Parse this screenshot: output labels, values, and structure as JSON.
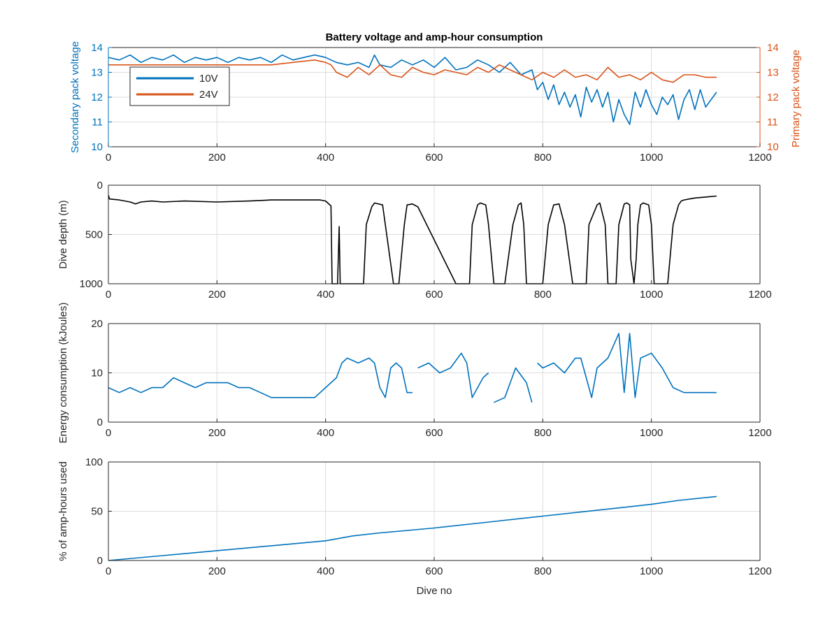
{
  "figure": {
    "title": "Battery voltage and amp-hour consumption"
  },
  "colors": {
    "blue": "#0072BD",
    "orange": "#D95319",
    "black": "#000000",
    "grid": "#dcdcdc",
    "axis": "#262626"
  },
  "chart_data": [
    {
      "type": "line",
      "title": "Battery voltage and amp-hour consumption",
      "xlabel": "",
      "ylabel": "Secondary pack voltage",
      "ylabel_right": "Primary pack voltage",
      "xlim": [
        0,
        1200
      ],
      "ylim": [
        10,
        14
      ],
      "ylim_right": [
        10,
        14
      ],
      "xticks": [
        0,
        200,
        400,
        600,
        800,
        1000,
        1200
      ],
      "yticks": [
        10,
        11,
        12,
        13,
        14
      ],
      "yticks_right": [
        10,
        11,
        12,
        13,
        14
      ],
      "grid": true,
      "legend": "top-left",
      "series": [
        {
          "name": "10V",
          "color": "#0072BD",
          "axis": "left",
          "x": [
            0,
            20,
            40,
            60,
            80,
            100,
            120,
            140,
            160,
            180,
            200,
            220,
            240,
            260,
            280,
            300,
            320,
            340,
            360,
            380,
            400,
            410,
            420,
            440,
            460,
            480,
            490,
            500,
            520,
            540,
            560,
            580,
            600,
            620,
            640,
            660,
            680,
            700,
            720,
            740,
            760,
            780,
            790,
            800,
            810,
            820,
            830,
            840,
            850,
            860,
            870,
            880,
            890,
            900,
            910,
            920,
            930,
            940,
            950,
            960,
            970,
            980,
            990,
            1000,
            1010,
            1020,
            1030,
            1040,
            1050,
            1060,
            1070,
            1080,
            1090,
            1100,
            1110,
            1120
          ],
          "values": [
            13.6,
            13.5,
            13.7,
            13.4,
            13.6,
            13.5,
            13.7,
            13.4,
            13.6,
            13.5,
            13.6,
            13.4,
            13.6,
            13.5,
            13.6,
            13.4,
            13.7,
            13.5,
            13.6,
            13.7,
            13.6,
            13.5,
            13.4,
            13.3,
            13.4,
            13.2,
            13.7,
            13.3,
            13.2,
            13.5,
            13.3,
            13.5,
            13.2,
            13.6,
            13.1,
            13.2,
            13.5,
            13.3,
            13.0,
            13.4,
            12.9,
            13.1,
            12.3,
            12.6,
            11.9,
            12.5,
            11.7,
            12.2,
            11.6,
            12.1,
            11.2,
            12.4,
            11.8,
            12.3,
            11.6,
            12.2,
            11.0,
            11.9,
            11.3,
            10.9,
            12.2,
            11.6,
            12.3,
            11.7,
            11.3,
            12.0,
            11.7,
            12.1,
            11.1,
            11.9,
            12.3,
            11.5,
            12.3,
            11.6,
            11.9,
            12.2
          ]
        },
        {
          "name": "24V",
          "color": "#D95319",
          "axis": "right",
          "x": [
            0,
            100,
            200,
            300,
            380,
            400,
            410,
            420,
            440,
            460,
            480,
            500,
            520,
            540,
            560,
            580,
            600,
            620,
            640,
            660,
            680,
            700,
            720,
            740,
            760,
            780,
            800,
            820,
            840,
            860,
            880,
            900,
            920,
            940,
            960,
            980,
            1000,
            1020,
            1040,
            1060,
            1080,
            1100,
            1120
          ],
          "values": [
            13.3,
            13.3,
            13.3,
            13.3,
            13.5,
            13.4,
            13.3,
            13.0,
            12.8,
            13.2,
            12.9,
            13.3,
            12.9,
            12.8,
            13.2,
            13.0,
            12.9,
            13.1,
            13.0,
            12.9,
            13.2,
            13.0,
            13.3,
            13.1,
            12.9,
            12.7,
            13.0,
            12.8,
            13.1,
            12.8,
            12.9,
            12.7,
            13.2,
            12.8,
            12.9,
            12.7,
            13.0,
            12.7,
            12.6,
            12.9,
            12.9,
            12.8,
            12.8
          ]
        }
      ]
    },
    {
      "type": "line",
      "xlabel": "",
      "ylabel": "Dive depth (m)",
      "xlim": [
        0,
        1200
      ],
      "ylim": [
        0,
        1000
      ],
      "y_reversed": true,
      "xticks": [
        0,
        200,
        400,
        600,
        800,
        1000,
        1200
      ],
      "yticks": [
        0,
        500,
        1000
      ],
      "ytick_labels": [
        "0",
        "500",
        "1000"
      ],
      "grid": true,
      "series": [
        {
          "color": "#000000",
          "x": [
            0,
            2,
            20,
            40,
            50,
            60,
            80,
            100,
            140,
            200,
            260,
            300,
            350,
            390,
            400,
            410,
            412,
            418,
            422,
            425,
            427,
            430,
            470,
            475,
            485,
            490,
            505,
            510,
            525,
            535,
            545,
            550,
            560,
            570,
            640,
            655,
            665,
            670,
            680,
            685,
            695,
            700,
            710,
            725,
            730,
            745,
            755,
            760,
            765,
            770,
            795,
            800,
            810,
            820,
            830,
            840,
            855,
            860,
            880,
            885,
            900,
            905,
            915,
            920,
            935,
            940,
            950,
            955,
            960,
            962,
            968,
            972,
            975,
            980,
            985,
            995,
            1000,
            1005,
            1015,
            1030,
            1040,
            1050,
            1055,
            1060,
            1070,
            1080,
            1100,
            1120
          ],
          "values": [
            100,
            140,
            150,
            170,
            190,
            170,
            160,
            170,
            160,
            170,
            160,
            150,
            150,
            150,
            160,
            210,
            1000,
            1000,
            1000,
            420,
            1000,
            1000,
            1000,
            400,
            220,
            180,
            200,
            400,
            1000,
            1000,
            400,
            200,
            190,
            220,
            1000,
            1000,
            1000,
            400,
            200,
            180,
            200,
            400,
            1000,
            1000,
            1000,
            400,
            200,
            180,
            400,
            1000,
            1000,
            1000,
            400,
            200,
            190,
            400,
            1000,
            1000,
            1000,
            400,
            200,
            180,
            400,
            1000,
            1000,
            400,
            190,
            180,
            200,
            750,
            1000,
            750,
            400,
            200,
            180,
            200,
            400,
            1000,
            1000,
            1000,
            400,
            200,
            160,
            150,
            140,
            130,
            120,
            110
          ]
        }
      ]
    },
    {
      "type": "line",
      "xlabel": "",
      "ylabel": "Energy consumption (kJoules)",
      "xlim": [
        0,
        1200
      ],
      "ylim": [
        0,
        20
      ],
      "xticks": [
        0,
        200,
        400,
        600,
        800,
        1000,
        1200
      ],
      "yticks": [
        0,
        10,
        20
      ],
      "grid": true,
      "series": [
        {
          "color": "#0072BD",
          "segments": [
            {
              "x": [
                0,
                20,
                40,
                60,
                80,
                100,
                120,
                140,
                160,
                180,
                200,
                220,
                240,
                260,
                280,
                300,
                320,
                340,
                360,
                380,
                400,
                410,
                420,
                430,
                440,
                460,
                480,
                490,
                500,
                510,
                520,
                530,
                540,
                550,
                560
              ],
              "values": [
                7,
                6,
                7,
                6,
                7,
                7,
                9,
                8,
                7,
                8,
                8,
                8,
                7,
                7,
                6,
                5,
                5,
                5,
                5,
                5,
                7,
                8,
                9,
                12,
                13,
                12,
                13,
                12,
                7,
                5,
                11,
                12,
                11,
                6,
                6
              ]
            },
            {
              "x": [
                570,
                590,
                610,
                630,
                650,
                660,
                670,
                690,
                700
              ],
              "values": [
                11,
                12,
                10,
                11,
                14,
                12,
                5,
                9,
                10
              ]
            },
            {
              "x": [
                710,
                730,
                750,
                770,
                780
              ],
              "values": [
                4,
                5,
                11,
                8,
                4
              ]
            },
            {
              "x": [
                790,
                800,
                820,
                840,
                860,
                870,
                880,
                890,
                900,
                920,
                940,
                950,
                960,
                970,
                980,
                1000,
                1020,
                1040,
                1060,
                1080,
                1100,
                1120
              ],
              "values": [
                12,
                11,
                12,
                10,
                13,
                13,
                9,
                5,
                11,
                13,
                18,
                6,
                18,
                5,
                13,
                14,
                11,
                7,
                6,
                6,
                6,
                6
              ]
            }
          ]
        }
      ]
    },
    {
      "type": "line",
      "xlabel": "Dive no",
      "ylabel": "% of amp-hours used",
      "xlim": [
        0,
        1200
      ],
      "ylim": [
        0,
        100
      ],
      "xticks": [
        0,
        200,
        400,
        600,
        800,
        1000,
        1200
      ],
      "yticks": [
        0,
        50,
        100
      ],
      "grid": true,
      "series": [
        {
          "color": "#0072BD",
          "x": [
            0,
            100,
            200,
            300,
            400,
            450,
            500,
            600,
            700,
            800,
            900,
            1000,
            1050,
            1120
          ],
          "values": [
            0,
            5,
            10,
            15,
            20,
            25,
            28,
            33,
            39,
            45,
            51,
            57,
            61,
            65
          ]
        }
      ]
    }
  ]
}
